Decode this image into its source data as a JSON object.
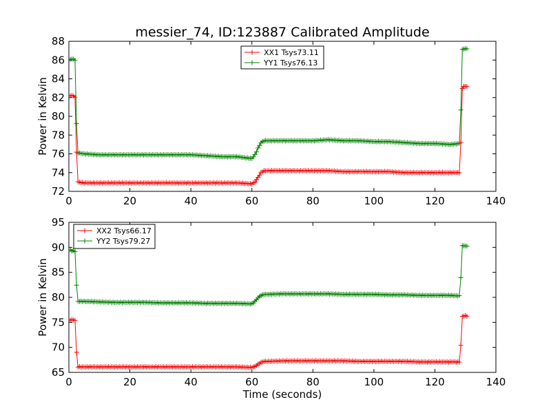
{
  "title": "messier_74, ID:123887 Calibrated Amplitude",
  "colors": {
    "xx": "#ff0000",
    "yy": "#008000"
  },
  "chart_data": [
    {
      "type": "line",
      "title": "messier_74, ID:123887 Calibrated Amplitude",
      "xlabel": "",
      "ylabel": "Power in Kelvin",
      "xlim": [
        0,
        140
      ],
      "ylim": [
        72,
        88
      ],
      "xticks": [
        "0",
        "20",
        "40",
        "60",
        "80",
        "100",
        "120",
        "140"
      ],
      "yticks": [
        "72",
        "74",
        "76",
        "78",
        "80",
        "82",
        "84",
        "86",
        "88"
      ],
      "grid": false,
      "legend_position": "top-center",
      "series": [
        {
          "name": "XX1 Tsys73.11",
          "color": "#ff0000",
          "x": [
            0.5,
            1,
            1.5,
            2,
            2.5,
            3,
            5,
            10,
            15,
            20,
            25,
            30,
            35,
            40,
            45,
            50,
            55,
            60,
            61,
            62,
            63,
            64,
            65,
            70,
            75,
            80,
            85,
            90,
            95,
            100,
            105,
            110,
            115,
            120,
            125,
            128,
            128.5,
            129,
            129.5,
            130,
            130.5
          ],
          "values": [
            82.2,
            82.2,
            82.2,
            82.0,
            76.2,
            73.0,
            72.9,
            72.9,
            72.9,
            72.9,
            72.9,
            72.9,
            72.9,
            72.9,
            72.9,
            72.9,
            72.9,
            72.8,
            73.0,
            73.5,
            74.0,
            74.2,
            74.2,
            74.2,
            74.2,
            74.2,
            74.2,
            74.1,
            74.1,
            74.1,
            74.1,
            74.0,
            74.0,
            74.0,
            74.0,
            74.0,
            77.2,
            83.0,
            83.2,
            83.2,
            83.2
          ]
        },
        {
          "name": "YY1 Tsys76.13",
          "color": "#008000",
          "x": [
            0.5,
            1,
            1.5,
            2,
            2.5,
            3,
            5,
            10,
            15,
            20,
            25,
            30,
            35,
            40,
            45,
            50,
            55,
            60,
            61,
            62,
            63,
            64,
            65,
            70,
            75,
            80,
            85,
            90,
            95,
            100,
            105,
            110,
            115,
            120,
            125,
            128,
            128.5,
            129,
            129.5,
            130,
            130.5
          ],
          "values": [
            86.1,
            86.1,
            86.1,
            86.0,
            79.2,
            76.1,
            76.0,
            75.9,
            75.9,
            75.9,
            75.9,
            75.9,
            75.9,
            75.9,
            75.8,
            75.7,
            75.7,
            75.5,
            75.9,
            76.6,
            77.2,
            77.4,
            77.4,
            77.4,
            77.4,
            77.4,
            77.5,
            77.4,
            77.4,
            77.3,
            77.3,
            77.2,
            77.1,
            77.1,
            77.0,
            77.1,
            80.7,
            87.1,
            87.2,
            87.2,
            87.2
          ]
        }
      ]
    },
    {
      "type": "line",
      "title": "",
      "xlabel": "Time (seconds)",
      "ylabel": "Power in Kelvin",
      "xlim": [
        0,
        140
      ],
      "ylim": [
        65,
        95
      ],
      "xticks": [
        "0",
        "20",
        "40",
        "60",
        "80",
        "100",
        "120",
        "140"
      ],
      "yticks": [
        "65",
        "70",
        "75",
        "80",
        "85",
        "90",
        "95"
      ],
      "grid": false,
      "legend_position": "top-left",
      "series": [
        {
          "name": "XX2 Tsys66.17",
          "color": "#ff0000",
          "x": [
            0.5,
            1,
            1.5,
            2,
            2.5,
            3,
            5,
            10,
            15,
            20,
            25,
            30,
            35,
            40,
            45,
            50,
            55,
            60,
            61,
            62,
            63,
            64,
            65,
            70,
            75,
            80,
            85,
            90,
            95,
            100,
            105,
            110,
            115,
            120,
            125,
            128,
            128.5,
            129,
            129.5,
            130,
            130.5
          ],
          "values": [
            75.5,
            75.5,
            75.5,
            75.4,
            69.0,
            66.1,
            66.1,
            66.1,
            66.1,
            66.1,
            66.1,
            66.1,
            66.1,
            66.1,
            66.1,
            66.1,
            66.1,
            66.0,
            66.2,
            66.6,
            67.0,
            67.2,
            67.2,
            67.3,
            67.3,
            67.3,
            67.3,
            67.3,
            67.2,
            67.2,
            67.2,
            67.2,
            67.1,
            67.1,
            67.1,
            67.1,
            70.4,
            76.2,
            76.3,
            76.3,
            76.3
          ]
        },
        {
          "name": "YY2 Tsys79.27",
          "color": "#008000",
          "x": [
            0.5,
            1,
            1.5,
            2,
            2.5,
            3,
            5,
            10,
            15,
            20,
            25,
            30,
            35,
            40,
            45,
            50,
            55,
            60,
            61,
            62,
            63,
            64,
            65,
            70,
            75,
            80,
            85,
            90,
            95,
            100,
            105,
            110,
            115,
            120,
            125,
            128,
            128.5,
            129,
            129.5,
            130,
            130.5
          ],
          "values": [
            89.5,
            89.3,
            89.3,
            89.2,
            82.4,
            79.2,
            79.2,
            79.1,
            79.0,
            79.0,
            79.0,
            78.9,
            78.9,
            78.9,
            78.8,
            78.8,
            78.8,
            78.7,
            79.2,
            79.9,
            80.4,
            80.6,
            80.6,
            80.7,
            80.7,
            80.7,
            80.7,
            80.6,
            80.6,
            80.6,
            80.5,
            80.5,
            80.4,
            80.4,
            80.4,
            80.3,
            84.0,
            90.3,
            90.3,
            90.3,
            90.2
          ]
        }
      ]
    }
  ]
}
